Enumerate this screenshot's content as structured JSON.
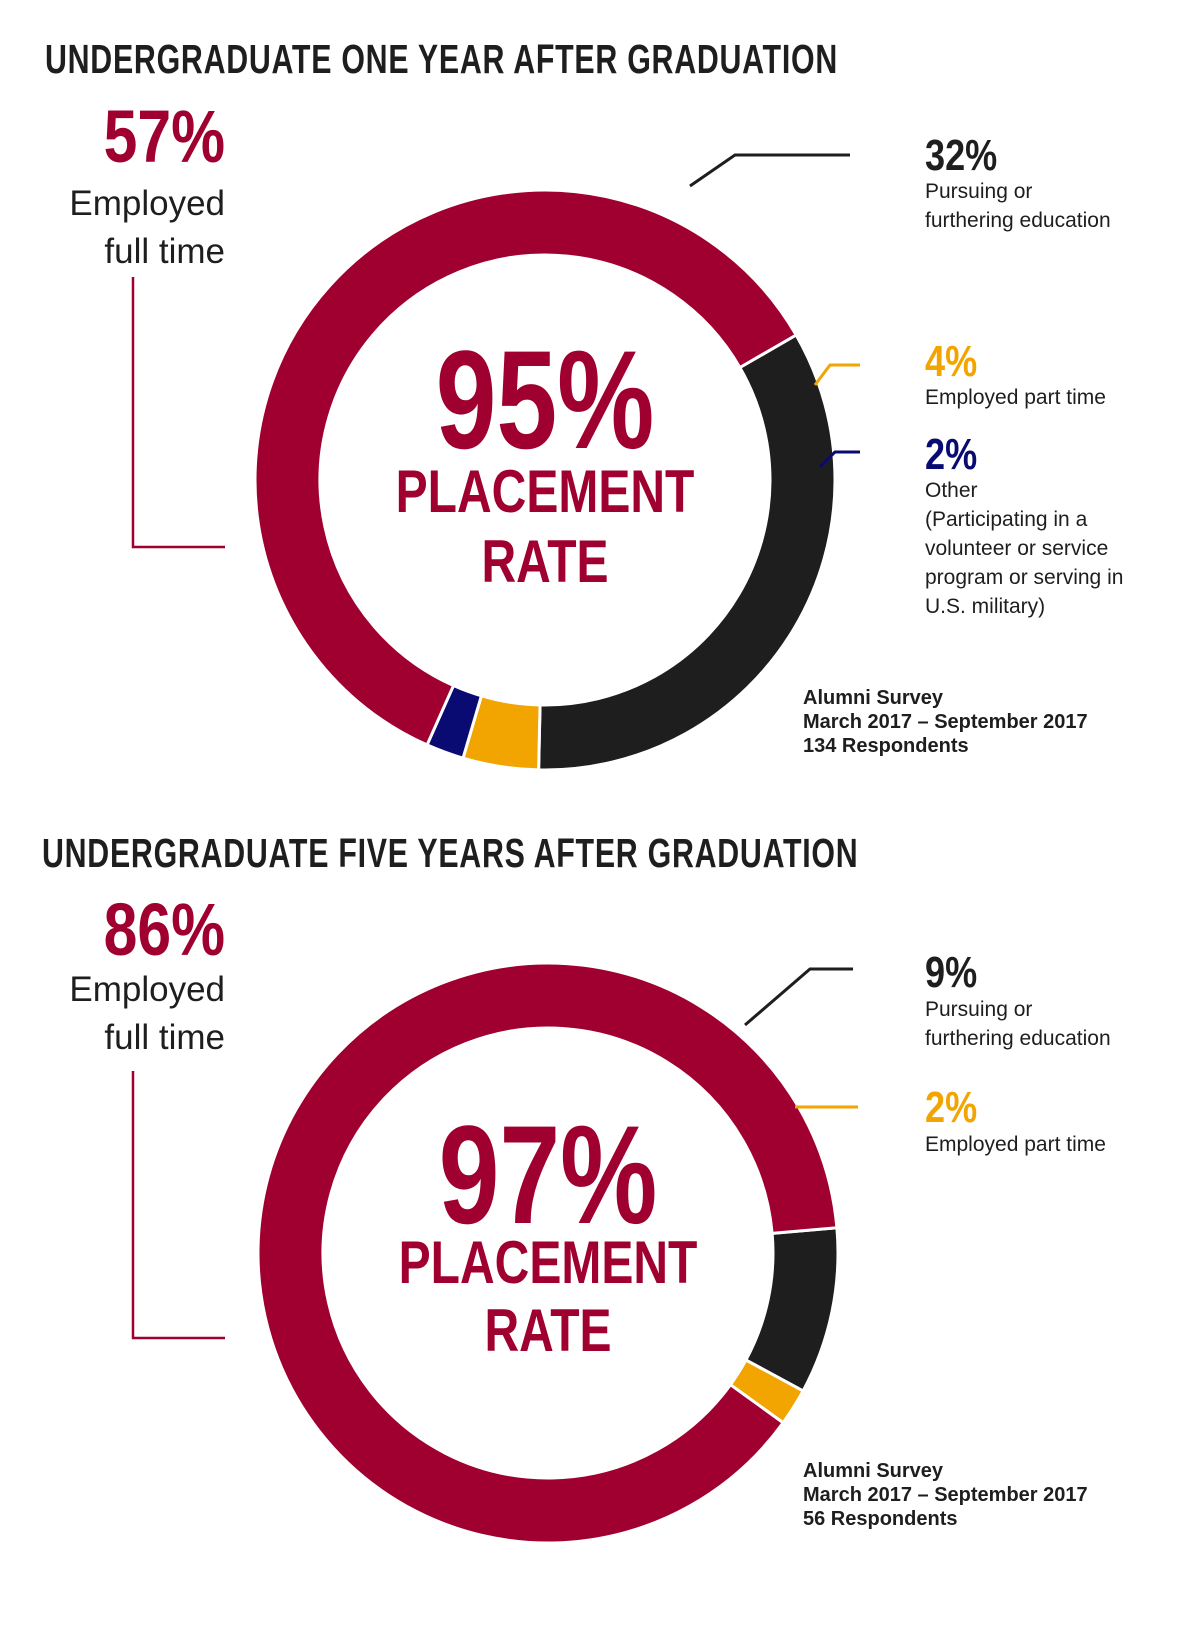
{
  "colors": {
    "crimson": "#a00030",
    "black": "#1e1e1e",
    "gold": "#f2a400",
    "navy": "#0a0a73",
    "white": "#ffffff"
  },
  "charts": [
    {
      "title": "UNDERGRADUATE ONE YEAR AFTER GRADUATION",
      "main_pct": "57%",
      "main_label_lines": [
        "Employed",
        "full time"
      ],
      "center_pct": "95%",
      "center_line1": "PLACEMENT",
      "center_line2": "RATE",
      "callouts": [
        {
          "pct": "32%",
          "color": "#1e1e1e",
          "lines": [
            "Pursuing or",
            "furthering education"
          ]
        },
        {
          "pct": "4%",
          "color": "#f2a400",
          "lines": [
            "Employed part time"
          ]
        },
        {
          "pct": "2%",
          "color": "#0a0a73",
          "lines": [
            "Other",
            "(Participating in a",
            "volunteer or service",
            "program or serving in",
            "U.S. military)"
          ]
        }
      ],
      "source_lines": [
        "Alumni Survey",
        "March 2017 – September 2017",
        "134 Respondents"
      ]
    },
    {
      "title": "UNDERGRADUATE FIVE YEARS AFTER GRADUATION",
      "main_pct": "86%",
      "main_label_lines": [
        "Employed",
        "full time"
      ],
      "center_pct": "97%",
      "center_line1": "PLACEMENT",
      "center_line2": "RATE",
      "callouts": [
        {
          "pct": "9%",
          "color": "#1e1e1e",
          "lines": [
            "Pursuing or",
            "furthering education"
          ]
        },
        {
          "pct": "2%",
          "color": "#f2a400",
          "lines": [
            "Employed part time"
          ]
        }
      ],
      "source_lines": [
        "Alumni Survey",
        "March 2017 – September 2017",
        "56 Respondents"
      ]
    }
  ],
  "chart_data": [
    {
      "type": "pie",
      "title": "UNDERGRADUATE ONE YEAR AFTER GRADUATION",
      "categories": [
        "Employed full time",
        "Pursuing or furthering education",
        "Employed part time",
        "Other"
      ],
      "values": [
        57,
        32,
        4,
        2
      ],
      "unit": "%",
      "colors": [
        "#a00030",
        "#1e1e1e",
        "#f2a400",
        "#0a0a73"
      ],
      "total_label": "95% PLACEMENT RATE"
    },
    {
      "type": "pie",
      "title": "UNDERGRADUATE FIVE YEARS AFTER GRADUATION",
      "categories": [
        "Employed full time",
        "Pursuing or furthering education",
        "Employed part time"
      ],
      "values": [
        86,
        9,
        2
      ],
      "unit": "%",
      "colors": [
        "#a00030",
        "#1e1e1e",
        "#f2a400"
      ],
      "total_label": "97% PLACEMENT RATE"
    }
  ]
}
